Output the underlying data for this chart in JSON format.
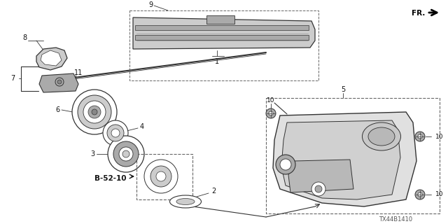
{
  "bg_color": "#ffffff",
  "line_color": "#333333",
  "dashed_color": "#666666",
  "fill_light": "#cccccc",
  "fill_mid": "#aaaaaa",
  "fill_dark": "#888888",
  "code": "TX44B1410"
}
